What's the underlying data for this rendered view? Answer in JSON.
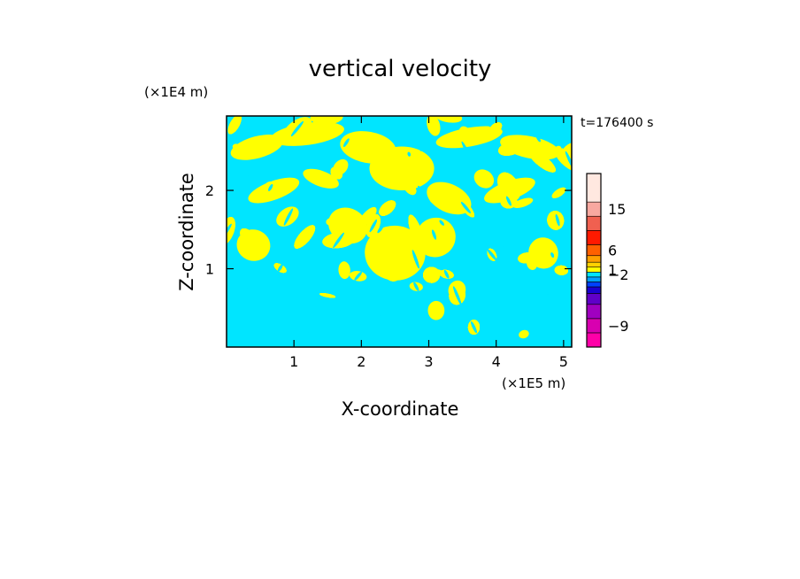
{
  "chart_data": {
    "type": "heatmap",
    "title": "vertical velocity",
    "xlabel": "X-coordinate",
    "ylabel": "Z-coordinate",
    "x_unit": "(×1E5 m)",
    "y_unit": "(×1E4 m)",
    "time_label": "t=176400 s",
    "xlim": [
      0,
      5.12
    ],
    "ylim": [
      0,
      2.95
    ],
    "x_ticks": [
      1,
      2,
      3,
      4,
      5
    ],
    "y_ticks": [
      1,
      2
    ],
    "x_tick_labels": [
      "1",
      "2",
      "3",
      "4",
      "5"
    ],
    "y_tick_labels": [
      "1",
      "2"
    ],
    "field_colors": {
      "positive": "#ffff00",
      "negative": "#00e5ff"
    },
    "colorbar": {
      "levels": [
        {
          "color": "#ff00a8"
        },
        {
          "color": "#d800b0"
        },
        {
          "color": "#a000c0"
        },
        {
          "color": "#6000c8"
        },
        {
          "color": "#1a00d0"
        },
        {
          "color": "#0040ff"
        },
        {
          "color": "#00a0ff"
        },
        {
          "color": "#00e5ff"
        },
        {
          "color": "#ffff00"
        },
        {
          "color": "#ffd200"
        },
        {
          "color": "#ffa000"
        },
        {
          "color": "#ff6000"
        },
        {
          "color": "#ff1a00"
        },
        {
          "color": "#f06050"
        },
        {
          "color": "#f8a8a0"
        },
        {
          "color": "#ffe8e0"
        }
      ],
      "tick_labels": [
        {
          "label": "-9",
          "level_index": 1
        },
        {
          "label": "-2",
          "level_index": 7
        },
        {
          "label": "1",
          "level_index": 8
        },
        {
          "label": "6",
          "level_index": 11
        },
        {
          "label": "15",
          "level_index": 14
        }
      ]
    }
  }
}
